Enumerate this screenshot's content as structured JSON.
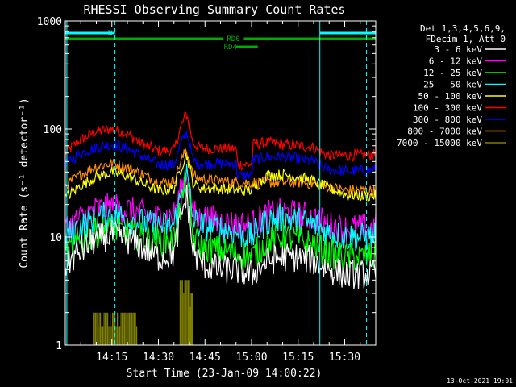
{
  "footer_timestamp": "13-Oct-2021 19:01",
  "chart_data": {
    "type": "line",
    "title": "RHESSI Observing Summary Count Rates",
    "xlabel": "Start Time (23-Jan-09 14:00:22)",
    "ylabel": "Count Rate (s⁻¹ detector⁻¹)",
    "yscale": "log",
    "xlim_minutes": [
      0,
      100
    ],
    "ylim": [
      1,
      1000
    ],
    "x_ticks": [
      {
        "minute": 15,
        "label": "14:15"
      },
      {
        "minute": 30,
        "label": "14:30"
      },
      {
        "minute": 45,
        "label": "14:45"
      },
      {
        "minute": 60,
        "label": "15:00"
      },
      {
        "minute": 75,
        "label": "15:15"
      },
      {
        "minute": 90,
        "label": "15:30"
      }
    ],
    "y_ticks": [
      {
        "value": 1,
        "label": "1"
      },
      {
        "value": 10,
        "label": "10"
      },
      {
        "value": 100,
        "label": "100"
      },
      {
        "value": 1000,
        "label": "1000"
      }
    ],
    "legend": {
      "position": "right",
      "header": [
        "Det 1,3,4,5,6,9,",
        "FDecim 1, Att 0"
      ],
      "entries": [
        {
          "label": "3 - 6 keV",
          "color": "#ffffff"
        },
        {
          "label": "6 - 12 keV",
          "color": "#ff00ff"
        },
        {
          "label": "12 - 25 keV",
          "color": "#00ff00"
        },
        {
          "label": "25 - 50 keV",
          "color": "#00ffff"
        },
        {
          "label": "50 - 100 keV",
          "color": "#ffff00"
        },
        {
          "label": "100 - 300 keV",
          "color": "#ff0000"
        },
        {
          "label": "300 - 800 keV",
          "color": "#0000ff"
        },
        {
          "label": "800 - 7000 keV",
          "color": "#ff8c00"
        },
        {
          "label": "7000 - 15000 keV",
          "color": "#808000"
        }
      ]
    },
    "flags": [
      {
        "label": "N",
        "color": "#00ffff",
        "segments": [
          [
            0,
            16
          ],
          [
            82,
            100
          ]
        ]
      },
      {
        "label": "RD0",
        "color": "#00aa00",
        "segments": [
          [
            0,
            100
          ]
        ]
      },
      {
        "label": "RD4",
        "color": "#00aa00",
        "segments": [
          [
            55,
            62
          ]
        ]
      }
    ],
    "vertical_lines": [
      {
        "minute": 0.5,
        "color": "#00ffff",
        "style": "solid"
      },
      {
        "minute": 16,
        "color": "#00ffff",
        "style": "dashed"
      },
      {
        "minute": 82,
        "color": "#00ffff",
        "style": "solid"
      },
      {
        "minute": 97,
        "color": "#00ffff",
        "style": "dashed"
      }
    ],
    "series": [
      {
        "name": "100 - 300 keV",
        "color": "#ff0000",
        "x": [
          0,
          5,
          10,
          15,
          20,
          25,
          30,
          35,
          37,
          39,
          40,
          41,
          43,
          45,
          50,
          55,
          55.5,
          60,
          60.5,
          65,
          70,
          75,
          80,
          82,
          85,
          90,
          95,
          100
        ],
        "y": [
          60,
          80,
          95,
          100,
          90,
          72,
          63,
          63,
          100,
          140,
          110,
          75,
          68,
          66,
          66,
          66,
          47,
          47,
          72,
          75,
          72,
          70,
          68,
          62,
          57,
          57,
          57,
          58
        ]
      },
      {
        "name": "300 - 800 keV",
        "color": "#0000ff",
        "x": [
          0,
          5,
          10,
          15,
          20,
          25,
          30,
          35,
          37,
          39,
          40,
          41,
          43,
          45,
          50,
          55,
          55.5,
          60,
          60.5,
          65,
          70,
          75,
          80,
          82,
          85,
          90,
          95,
          100
        ],
        "y": [
          47,
          60,
          68,
          72,
          66,
          55,
          47,
          47,
          70,
          95,
          75,
          52,
          48,
          48,
          48,
          48,
          37,
          37,
          52,
          55,
          55,
          53,
          50,
          46,
          42,
          41,
          41,
          42
        ]
      },
      {
        "name": "800 - 7000 keV",
        "color": "#ff8c00",
        "x": [
          0,
          5,
          10,
          15,
          20,
          25,
          30,
          35,
          37,
          39,
          40,
          41,
          43,
          45,
          50,
          55,
          60,
          65,
          70,
          75,
          80,
          85,
          90,
          95,
          100
        ],
        "y": [
          30,
          38,
          45,
          48,
          44,
          38,
          32,
          33,
          48,
          65,
          52,
          38,
          35,
          34,
          33,
          32,
          32,
          32,
          32,
          32,
          31,
          29,
          27,
          27,
          27
        ]
      },
      {
        "name": "50 - 100 keV",
        "color": "#ffff00",
        "x": [
          0,
          5,
          10,
          15,
          20,
          25,
          30,
          35,
          37,
          39,
          40,
          41,
          43,
          45,
          50,
          55,
          60,
          65,
          70,
          75,
          80,
          85,
          90,
          95,
          100
        ],
        "y": [
          23,
          30,
          36,
          40,
          37,
          31,
          27,
          28,
          42,
          58,
          46,
          32,
          29,
          28,
          28,
          27,
          27,
          37,
          38,
          36,
          33,
          28,
          25,
          24,
          24
        ]
      },
      {
        "name": "6 - 12 keV",
        "color": "#ff00ff",
        "x": [
          0,
          5,
          10,
          15,
          20,
          25,
          30,
          35,
          37,
          39,
          40,
          41,
          43,
          45,
          50,
          55,
          60,
          65,
          70,
          75,
          80,
          85,
          90,
          95,
          100
        ],
        "y": [
          12,
          15,
          18,
          19,
          18,
          16,
          15,
          16,
          25,
          38,
          28,
          17,
          15,
          15,
          14,
          13,
          13,
          16,
          17,
          16,
          15,
          13,
          12,
          12,
          12
        ]
      },
      {
        "name": "25 - 50 keV",
        "color": "#00ffff",
        "x": [
          0,
          5,
          10,
          15,
          20,
          25,
          30,
          35,
          37,
          39,
          40,
          41,
          43,
          45,
          50,
          55,
          60,
          65,
          70,
          75,
          80,
          85,
          90,
          95,
          100
        ],
        "y": [
          10,
          12.5,
          15,
          16,
          15,
          13.5,
          12.5,
          13,
          22,
          40,
          26,
          15,
          13,
          12.5,
          12,
          11,
          10,
          14,
          15,
          14,
          13,
          11,
          10,
          10,
          10
        ]
      },
      {
        "name": "12 - 25 keV",
        "color": "#00ff00",
        "x": [
          0,
          5,
          10,
          15,
          20,
          25,
          30,
          35,
          37,
          39,
          40,
          41,
          43,
          45,
          50,
          55,
          60,
          65,
          70,
          75,
          80,
          85,
          90,
          95,
          100
        ],
        "y": [
          7,
          9,
          11,
          12,
          11,
          10,
          9,
          9.5,
          18,
          35,
          21,
          10,
          8.5,
          8,
          7.5,
          7,
          6.5,
          9,
          10,
          9.5,
          8.5,
          7,
          6.5,
          6.5,
          6.5
        ]
      },
      {
        "name": "3 - 6 keV",
        "color": "#ffffff",
        "x": [
          0,
          5,
          10,
          15,
          20,
          25,
          30,
          35,
          37,
          39,
          40,
          41,
          43,
          45,
          50,
          55,
          60,
          65,
          70,
          75,
          80,
          85,
          90,
          95,
          100
        ],
        "y": [
          5.5,
          7.5,
          9.5,
          10.5,
          9.5,
          8,
          6.5,
          7,
          14,
          24,
          16,
          7.5,
          6,
          5.5,
          5,
          5,
          4.5,
          6,
          6.5,
          6.5,
          6,
          5,
          4.5,
          4.5,
          4.5
        ]
      }
    ],
    "bar_series": {
      "name": "7000 - 15000 keV",
      "color": "#808000",
      "bars": [
        {
          "x0": 9,
          "x1": 23,
          "y": 2
        },
        {
          "x0": 37,
          "x1": 40,
          "y": 4
        },
        {
          "x0": 40,
          "x1": 41,
          "y": 3
        }
      ]
    }
  }
}
